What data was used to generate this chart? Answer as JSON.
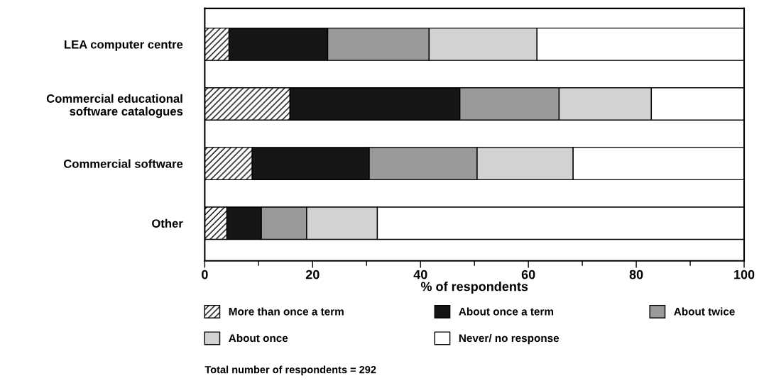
{
  "chart_data": {
    "type": "bar",
    "orientation": "horizontal",
    "stacked": true,
    "xlabel": "% of respondents",
    "categories": [
      "LEA computer centre",
      "Commercial educational\nsoftware catalogues",
      "Commercial software",
      "Other"
    ],
    "series": [
      {
        "name": "More than once a term",
        "color": "#ffffff",
        "values": [
          4.5,
          15.8,
          8.8,
          4.1
        ]
      },
      {
        "name": "About once a term",
        "color": "#151515",
        "values": [
          18.3,
          31.5,
          21.7,
          6.4
        ]
      },
      {
        "name": "About twice",
        "color": "#9a9a9a",
        "values": [
          18.8,
          18.4,
          20.0,
          8.4
        ]
      },
      {
        "name": "About once",
        "color": "#d2d2d2",
        "values": [
          20.0,
          17.1,
          17.8,
          13.1
        ]
      },
      {
        "name": "Never/ no response",
        "color": "#ffffff",
        "values": [
          38.4,
          17.2,
          31.7,
          68.0
        ]
      }
    ],
    "xlim": [
      0,
      100
    ],
    "xticks": [
      0,
      {
        "value": 10,
        "label": null
      },
      20,
      {
        "value": 30,
        "label": null
      },
      40,
      {
        "value": 50,
        "label": null
      },
      60,
      {
        "value": 70,
        "label": null
      },
      80,
      {
        "value": 90,
        "label": null
      },
      100
    ],
    "legend": "bottom",
    "grid": false,
    "annotations": [
      "Total number of respondents = 292"
    ]
  }
}
